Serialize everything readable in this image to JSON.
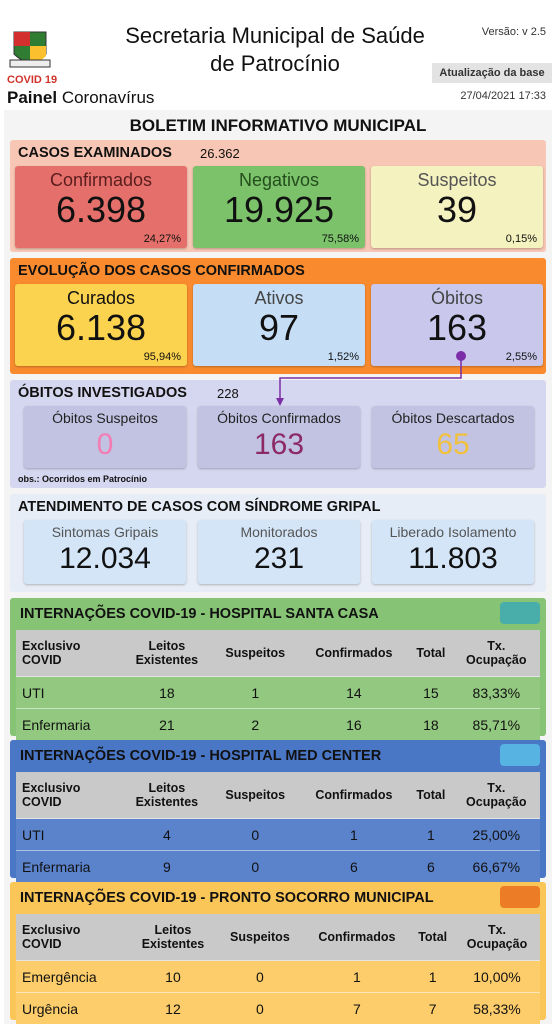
{
  "header": {
    "title": "Secretaria Municipal de Saúde\nde Patrocínio",
    "version": "Versão: v 2.5",
    "update_label": "Atualização da base",
    "update_date": "27/04/2021 17:33",
    "badge": "COVID 19",
    "panel": "Painel",
    "subject": "Coronavírus"
  },
  "board": {
    "title": "BOLETIM INFORMATIVO MUNICIPAL"
  },
  "panels": [
    {
      "title": "CASOS EXAMINADOS",
      "total": "26.362",
      "cards": [
        {
          "label": "Confirmados",
          "value": "6.398",
          "pct": "24,27%"
        },
        {
          "label": "Negativos",
          "value": "19.925",
          "pct": "75,58%"
        },
        {
          "label": "Suspeitos",
          "value": "39",
          "pct": "0,15%"
        }
      ]
    },
    {
      "title": "EVOLUÇÃO DOS CASOS CONFIRMADOS",
      "cards": [
        {
          "label": "Curados",
          "value": "6.138",
          "pct": "95,94%"
        },
        {
          "label": "Ativos",
          "value": "97",
          "pct": "1,52%"
        },
        {
          "label": "Óbitos",
          "value": "163",
          "pct": "2,55%"
        }
      ]
    },
    {
      "title": "ÓBITOS INVESTIGADOS",
      "total": "228",
      "cards": [
        {
          "label": "Óbitos Suspeitos",
          "value": "0"
        },
        {
          "label": "Óbitos Confirmados",
          "value": "163"
        },
        {
          "label": "Óbitos Descartados",
          "value": "65"
        }
      ],
      "note": "obs.: Ocorridos em Patrocínio"
    },
    {
      "title": "ATENDIMENTO DE CASOS COM SÍNDROME GRIPAL",
      "cards": [
        {
          "label": "Sintomas Gripais",
          "value": "12.034"
        },
        {
          "label": "Monitorados",
          "value": "231"
        },
        {
          "label": "Liberado Isolamento",
          "value": "11.803"
        }
      ]
    }
  ],
  "tables": [
    {
      "title": "INTERNAÇÕES COVID-19 - HOSPITAL SANTA CASA",
      "headers": [
        "Exclusivo\nCOVID",
        "Leitos\nExistentes",
        "Suspeitos",
        "Confirmados",
        "Total",
        "Tx.\nOcupação"
      ],
      "rows": [
        [
          "UTI",
          "18",
          "1",
          "14",
          "15",
          "83,33%"
        ],
        [
          "Enfermaria",
          "21",
          "2",
          "16",
          "18",
          "85,71%"
        ]
      ]
    },
    {
      "title": "INTERNAÇÕES COVID-19 - HOSPITAL MED CENTER",
      "headers": [
        "Exclusivo\nCOVID",
        "Leitos\nExistentes",
        "Suspeitos",
        "Confirmados",
        "Total",
        "Tx.\nOcupação"
      ],
      "rows": [
        [
          "UTI",
          "4",
          "0",
          "1",
          "1",
          "25,00%"
        ],
        [
          "Enfermaria",
          "9",
          "0",
          "6",
          "6",
          "66,67%"
        ]
      ]
    },
    {
      "title": "INTERNAÇÕES COVID-19 - PRONTO SOCORRO MUNICIPAL",
      "headers": [
        "Exclusivo\nCOVID",
        "Leitos\nExistentes",
        "Suspeitos",
        "Confirmados",
        "Total",
        "Tx.\nOcupação"
      ],
      "rows": [
        [
          "Emergência",
          "10",
          "0",
          "1",
          "1",
          "10,00%"
        ],
        [
          "Urgência",
          "12",
          "0",
          "7",
          "7",
          "58,33%"
        ]
      ]
    }
  ]
}
